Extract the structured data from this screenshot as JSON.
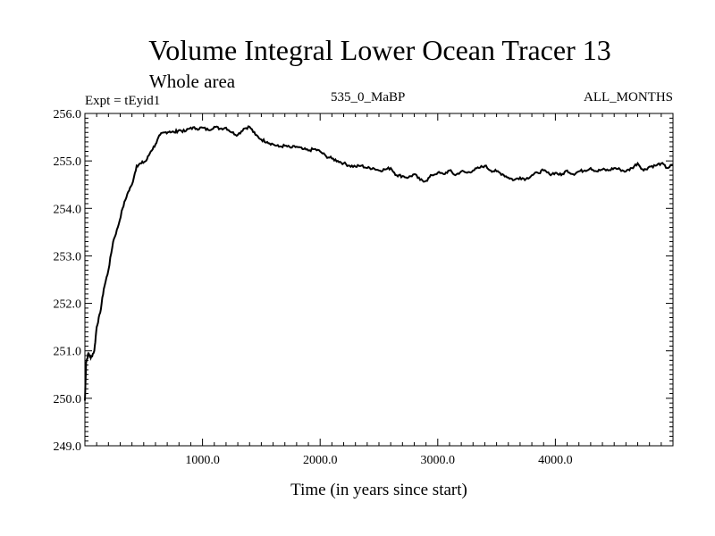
{
  "chart_data": {
    "type": "line",
    "title": "Volume Integral Lower Ocean Tracer 13",
    "subtitle": "Whole area",
    "experiment_label": "Expt = tEyid1",
    "period_label": "535_0_MaBP",
    "months_label": "ALL_MONTHS",
    "xlabel": "Time (in years since start)",
    "ylabel": "",
    "xlim": [
      0,
      5000
    ],
    "ylim": [
      249.0,
      256.0
    ],
    "x_ticks": [
      1000,
      2000,
      3000,
      4000
    ],
    "x_tick_labels": [
      "1000.0",
      "2000.0",
      "3000.0",
      "4000.0"
    ],
    "y_ticks": [
      249,
      250,
      251,
      252,
      253,
      254,
      255,
      256
    ],
    "y_tick_labels": [
      "249.0",
      "250.0",
      "251.0",
      "252.0",
      "253.0",
      "254.0",
      "255.0",
      "256.0"
    ],
    "series": [
      {
        "name": "Lower Ocean Tracer 13",
        "color": "#000000",
        "x": [
          0,
          10,
          30,
          50,
          80,
          100,
          130,
          160,
          200,
          240,
          280,
          320,
          360,
          400,
          440,
          480,
          520,
          560,
          600,
          640,
          680,
          720,
          760,
          800,
          850,
          900,
          950,
          1000,
          1050,
          1100,
          1150,
          1200,
          1250,
          1300,
          1350,
          1400,
          1450,
          1500,
          1550,
          1600,
          1650,
          1700,
          1750,
          1800,
          1850,
          1900,
          1950,
          2000,
          2050,
          2100,
          2150,
          2200,
          2250,
          2300,
          2350,
          2400,
          2450,
          2500,
          2550,
          2600,
          2650,
          2700,
          2750,
          2800,
          2850,
          2900,
          2950,
          3000,
          3050,
          3100,
          3150,
          3200,
          3250,
          3300,
          3350,
          3400,
          3450,
          3500,
          3550,
          3600,
          3650,
          3700,
          3750,
          3800,
          3850,
          3900,
          3950,
          4000,
          4050,
          4100,
          4150,
          4200,
          4250,
          4300,
          4350,
          4400,
          4450,
          4500,
          4550,
          4600,
          4650,
          4700,
          4750,
          4800,
          4850,
          4900,
          4950,
          5000
        ],
        "values": [
          249.95,
          250.75,
          250.95,
          250.85,
          251.0,
          251.5,
          251.8,
          252.3,
          252.7,
          253.3,
          253.6,
          254.0,
          254.3,
          254.5,
          254.9,
          254.95,
          255.0,
          255.2,
          255.35,
          255.55,
          255.6,
          255.62,
          255.6,
          255.65,
          255.62,
          255.7,
          255.68,
          255.7,
          255.65,
          255.72,
          255.68,
          255.7,
          255.6,
          255.55,
          255.68,
          255.72,
          255.55,
          255.45,
          255.4,
          255.35,
          255.3,
          255.32,
          255.28,
          255.3,
          255.25,
          255.22,
          255.25,
          255.2,
          255.1,
          255.05,
          255.0,
          254.95,
          254.9,
          254.88,
          254.9,
          254.85,
          254.85,
          254.8,
          254.82,
          254.85,
          254.7,
          254.68,
          254.65,
          254.72,
          254.6,
          254.58,
          254.7,
          254.75,
          254.72,
          254.8,
          254.7,
          254.78,
          254.75,
          254.8,
          254.85,
          254.9,
          254.8,
          254.78,
          254.72,
          254.65,
          254.6,
          254.65,
          254.62,
          254.7,
          254.75,
          254.8,
          254.72,
          254.75,
          254.7,
          254.8,
          254.72,
          254.78,
          254.8,
          254.85,
          254.78,
          254.82,
          254.8,
          254.85,
          254.82,
          254.78,
          254.85,
          254.95,
          254.8,
          254.88,
          254.9,
          254.95,
          254.85,
          254.92
        ]
      }
    ]
  }
}
